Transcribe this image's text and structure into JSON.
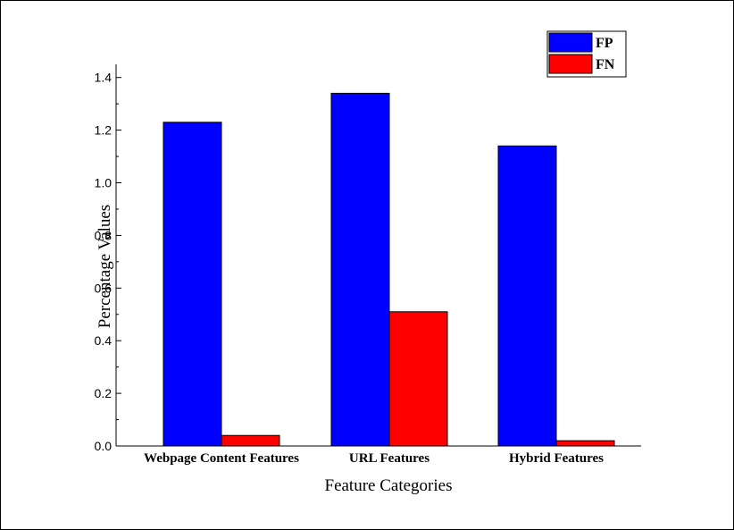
{
  "chart_data": {
    "type": "bar",
    "title": "",
    "xlabel": "Feature Categories",
    "ylabel": "Percentage Values",
    "categories": [
      "Webpage Content Features",
      "URL Features",
      "Hybrid Features"
    ],
    "series": [
      {
        "name": "FP",
        "color": "#0000ff",
        "values": [
          1.23,
          1.34,
          1.14
        ]
      },
      {
        "name": "FN",
        "color": "#ff0000",
        "values": [
          0.04,
          0.51,
          0.02
        ]
      }
    ],
    "ylim": [
      0,
      1.45
    ],
    "yticks": [
      "0.0",
      "0.2",
      "0.4",
      "0.6",
      "0.8",
      "1.0",
      "1.2",
      "1.4"
    ],
    "grid": false,
    "legend_position": "top-right"
  }
}
